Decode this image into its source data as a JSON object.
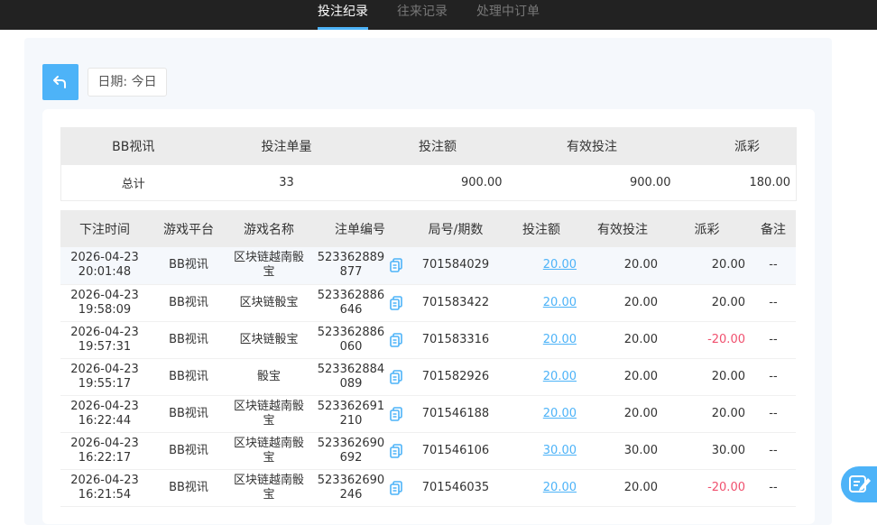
{
  "tabs": [
    {
      "label": "投注纪录",
      "active": true
    },
    {
      "label": "往来记录"
    },
    {
      "label": "处理中订单"
    }
  ],
  "filter": {
    "date_label": "日期: 今日"
  },
  "summary": {
    "headers": [
      "BB视讯",
      "投注单量",
      "投注额",
      "有效投注",
      "派彩"
    ],
    "row": [
      "总计",
      "33",
      "900.00",
      "900.00",
      "180.00"
    ]
  },
  "table": {
    "headers": [
      "下注时间",
      "游戏平台",
      "游戏名称",
      "注单编号",
      "局号/期数",
      "投注额",
      "有效投注",
      "派彩",
      "备注"
    ],
    "rows": [
      {
        "date": "2026-04-23",
        "time": "20:01:48",
        "platform": "BB视讯",
        "game": "区块链越南骰宝",
        "no1": "523362889",
        "no2": "877",
        "round": "701584029",
        "bet": "20.00",
        "valid": "20.00",
        "payout": "20.00",
        "note": "--"
      },
      {
        "date": "2026-04-23",
        "time": "19:58:09",
        "platform": "BB视讯",
        "game": "区块链骰宝",
        "no1": "523362886",
        "no2": "646",
        "round": "701583422",
        "bet": "20.00",
        "valid": "20.00",
        "payout": "20.00",
        "note": "--"
      },
      {
        "date": "2026-04-23",
        "time": "19:57:31",
        "platform": "BB视讯",
        "game": "区块链骰宝",
        "no1": "523362886",
        "no2": "060",
        "round": "701583316",
        "bet": "20.00",
        "valid": "20.00",
        "payout": "-20.00",
        "note": "--"
      },
      {
        "date": "2026-04-23",
        "time": "19:55:17",
        "platform": "BB视讯",
        "game": "骰宝",
        "no1": "523362884",
        "no2": "089",
        "round": "701582926",
        "bet": "20.00",
        "valid": "20.00",
        "payout": "20.00",
        "note": "--"
      },
      {
        "date": "2026-04-23",
        "time": "16:22:44",
        "platform": "BB视讯",
        "game": "区块链越南骰宝",
        "no1": "523362691",
        "no2": "210",
        "round": "701546188",
        "bet": "20.00",
        "valid": "20.00",
        "payout": "20.00",
        "note": "--"
      },
      {
        "date": "2026-04-23",
        "time": "16:22:17",
        "platform": "BB视讯",
        "game": "区块链越南骰宝",
        "no1": "523362690",
        "no2": "692",
        "round": "701546106",
        "bet": "30.00",
        "valid": "30.00",
        "payout": "30.00",
        "note": "--"
      },
      {
        "date": "2026-04-23",
        "time": "16:21:54",
        "platform": "BB视讯",
        "game": "区块链越南骰宝",
        "no1": "523362690",
        "no2": "246",
        "round": "701546035",
        "bet": "20.00",
        "valid": "20.00",
        "payout": "-20.00",
        "note": "--"
      }
    ]
  },
  "colors": {
    "accent": "#4db3f8",
    "negative": "#f0506e",
    "topbar": "#222222"
  },
  "icons": {
    "back": "back-arrow-icon",
    "copy": "copy-icon",
    "fab": "edit-icon"
  }
}
